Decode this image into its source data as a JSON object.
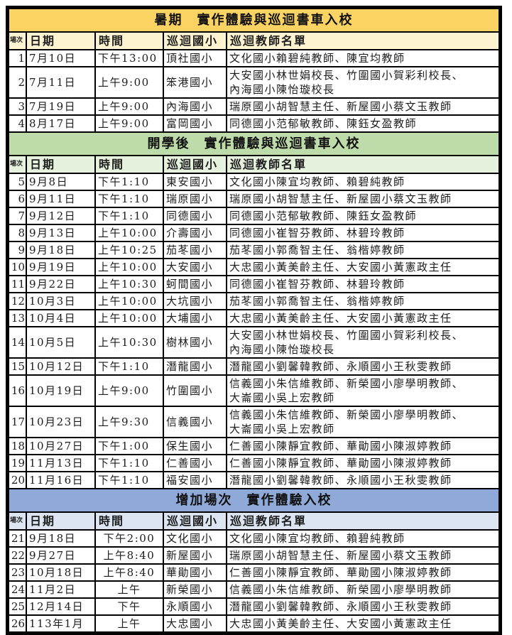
{
  "document": {
    "columns": {
      "no": "場次",
      "date": "日期",
      "time": "時間",
      "school": "巡迴國小",
      "teachers": "巡迴教師名單"
    },
    "sections": [
      {
        "title": "暑期　實作體驗與巡迴書車入校",
        "title_bg": "#FBD362",
        "header_bg": "#FDF3D1",
        "rows": [
          {
            "no": "1",
            "date": "7月10日",
            "time": "下午13:00",
            "school": "頂社國小",
            "teachers": "文化國小賴碧純教師、陳宜均教師"
          },
          {
            "no": "2",
            "date": "7月11日",
            "time": "上午9:00",
            "school": "笨港國小",
            "teachers": "大安國小林世娟校長、竹圍國小賀彩利校長、\n內海國小陳怡璇校長"
          },
          {
            "no": "3",
            "date": "7月19日",
            "time": "上午9:00",
            "school": "內海國小",
            "teachers": "瑞原國小胡智慧主任、新屋國小蔡文玉教師"
          },
          {
            "no": "4",
            "date": "8月17日",
            "time": "上午9:00",
            "school": "富岡國小",
            "teachers": "同德國小范郁敏教師、陳鈺女盈教師"
          }
        ]
      },
      {
        "title": "開學後　實作體驗與巡迴書車入校",
        "title_bg": "#BEDBAA",
        "header_bg": "#E6F1DE",
        "rows": [
          {
            "no": "5",
            "date": "9月8日",
            "time": "下午1:10",
            "school": "東安國小",
            "teachers": "文化國小陳宜均教師、賴碧純教師"
          },
          {
            "no": "6",
            "date": "9月11日",
            "time": "下午1:10",
            "school": "瑞原國小",
            "teachers": "瑞原國小胡智慧主任、新屋國小蔡文玉教師"
          },
          {
            "no": "7",
            "date": "9月12日",
            "time": "下午1:10",
            "school": "同德國小",
            "teachers": "同德國小范郁敏教師、陳鈺女盈教師"
          },
          {
            "no": "8",
            "date": "9月13日",
            "time": "上午10:00",
            "school": "介壽國小",
            "teachers": "同德國小崔智芬教師、林碧玲教師"
          },
          {
            "no": "9",
            "date": "9月18日",
            "time": "上午10:25",
            "school": "茄苳國小",
            "teachers": "茄苳國小郭喬智主任、翁楷婷教師"
          },
          {
            "no": "10",
            "date": "9月19日",
            "time": "上午10:00",
            "school": "大安國小",
            "teachers": "大忠國小黃美齡主任、大安國小黃憲政主任"
          },
          {
            "no": "11",
            "date": "9月22日",
            "time": "上午10:30",
            "school": "蚵間國小",
            "teachers": "同德國小崔智芬教師、林碧玲教師"
          },
          {
            "no": "12",
            "date": "10月3日",
            "time": "上午10:00",
            "school": "大坑國小",
            "teachers": "茄苳國小郭喬智主任、翁楷婷教師"
          },
          {
            "no": "13",
            "date": "10月4日",
            "time": "上午10:00",
            "school": "大埔國小",
            "teachers": "大忠國小黃美齡主任、大安國小黃憲政主任"
          },
          {
            "no": "14",
            "date": "10月5日",
            "time": "上午10:30",
            "school": "樹林國小",
            "teachers": "大安國小林世娟校長、竹圍國小賀彩利校長、\n內海國小陳怡璇校長"
          },
          {
            "no": "15",
            "date": "10月12日",
            "time": "下午1:10",
            "school": "潛龍國小",
            "teachers": "潛龍國小劉馨韓教師、永順國小王秋雯教師"
          },
          {
            "no": "16",
            "date": "10月19日",
            "time": "上午9:00",
            "school": "竹圍國小",
            "teachers": "信義國小朱信維教師、新榮國小廖學明教師、\n大崙國小吳上宏教師"
          },
          {
            "no": "17",
            "date": "10月23日",
            "time": "上午9:30",
            "school": "信義國小",
            "teachers": "信義國小朱信維教師、新榮國小廖學明教師、\n大崙國小吳上宏教師"
          },
          {
            "no": "18",
            "date": "10月27日",
            "time": "下午1:00",
            "school": "保生國小",
            "teachers": "仁善國小陳靜宜教師、華勛國小陳淑婷教師"
          },
          {
            "no": "19",
            "date": "11月13日",
            "time": "下午1:10",
            "school": "仁善國小",
            "teachers": "仁善國小陳靜宜教師、華勛國小陳淑婷教師"
          },
          {
            "no": "20",
            "date": "11月16日",
            "time": "下午1:10",
            "school": "福安國小",
            "teachers": "潛龍國小劉馨韓教師、永順國小王秋雯教師"
          }
        ]
      },
      {
        "title": "增加場次　實作體驗入校",
        "title_bg": "#8FAAD8",
        "header_bg": "#DDE5F3",
        "rows": [
          {
            "no": "21",
            "date": "9月18日",
            "time": "下午2:00",
            "school": "文化國小",
            "teachers": "文化國小陳宜均教師、賴碧純教師"
          },
          {
            "no": "22",
            "date": "9月27日",
            "time": "上午8:40",
            "school": "新屋國小",
            "teachers": "瑞原國小胡智慧主任、新屋國小蔡文玉教師"
          },
          {
            "no": "23",
            "date": "10月18日",
            "time": "上午8:40",
            "school": "華勛國小",
            "teachers": "仁善國小陳靜宜教師、華勛國小陳淑婷教師"
          },
          {
            "no": "24",
            "date": "11月2日",
            "time": "上午",
            "school": "新榮國小",
            "teachers": "信義國小朱信維教師、新榮國小廖學明教師"
          },
          {
            "no": "25",
            "date": "12月14日",
            "time": "下午",
            "school": "永順國小",
            "teachers": "潛龍國小劉馨韓教師、永順國小王秋雯教師"
          },
          {
            "no": "26",
            "date": "113年1月",
            "time": "上午",
            "school": "大忠國小",
            "teachers": "大忠國小黃美齡主任、大安國小黃憲政主任"
          }
        ]
      }
    ]
  }
}
